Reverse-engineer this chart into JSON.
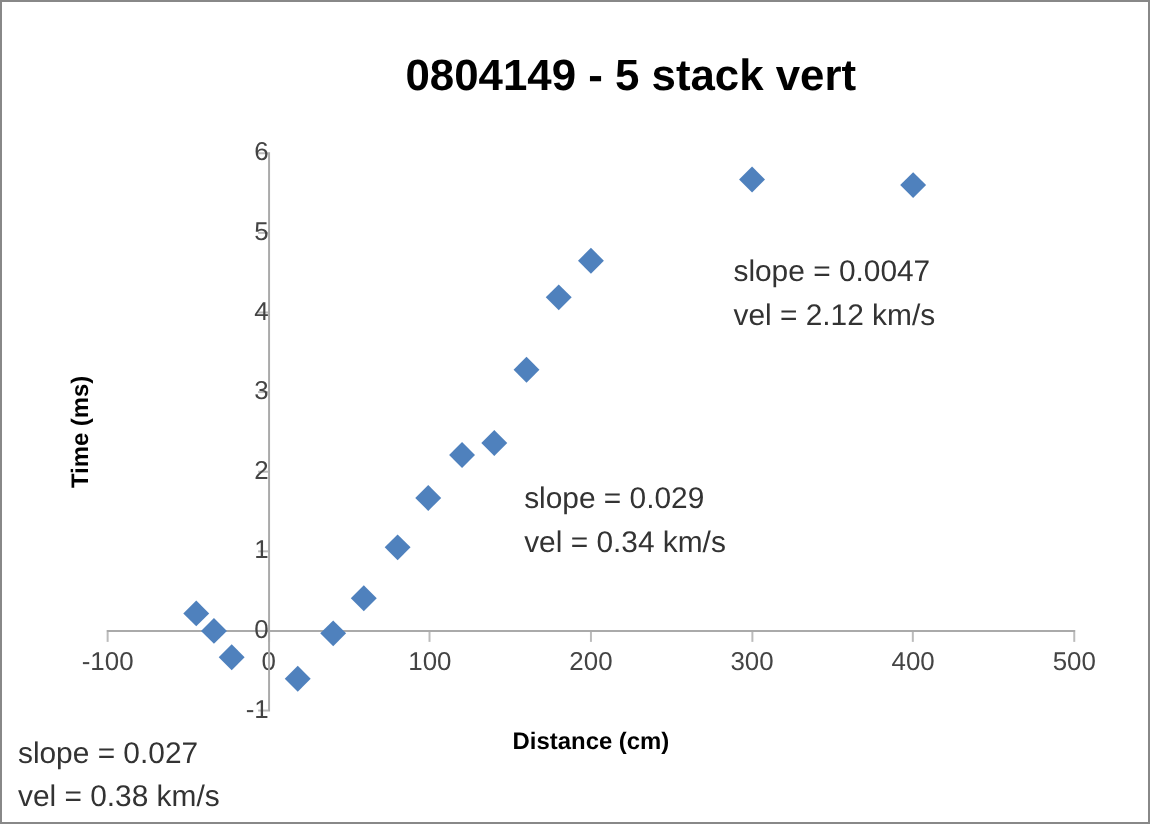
{
  "chart_data": {
    "type": "scatter",
    "title": "0804149 - 5 stack vert",
    "xlabel": "Distance (cm)",
    "ylabel": "Time (ms)",
    "x": [
      -45,
      -34,
      -23,
      18,
      40,
      59,
      80,
      99,
      120,
      140,
      160,
      180,
      200,
      300,
      400
    ],
    "series": [
      {
        "color": "#4f81bd",
        "values": [
          0.22,
          0.0,
          -0.33,
          -0.6,
          -0.03,
          0.41,
          1.05,
          1.67,
          2.21,
          2.36,
          3.28,
          4.19,
          4.65,
          5.67,
          5.6
        ]
      }
    ],
    "xlim": [
      -100,
      500
    ],
    "xticks": [
      -100,
      0,
      100,
      200,
      300,
      400,
      500
    ],
    "ylim": [
      -1,
      6
    ],
    "yticks": [
      -1,
      0,
      1,
      2,
      3,
      4,
      5,
      6
    ],
    "grid": false,
    "legend": false,
    "marker": "diamond",
    "annotations": [
      "slope = 0.0047\nvel = 2.12 km/s",
      "slope = 0.029\nvel = 0.34 km/s",
      "slope = 0.027\nvel = 0.38 km/s"
    ]
  }
}
